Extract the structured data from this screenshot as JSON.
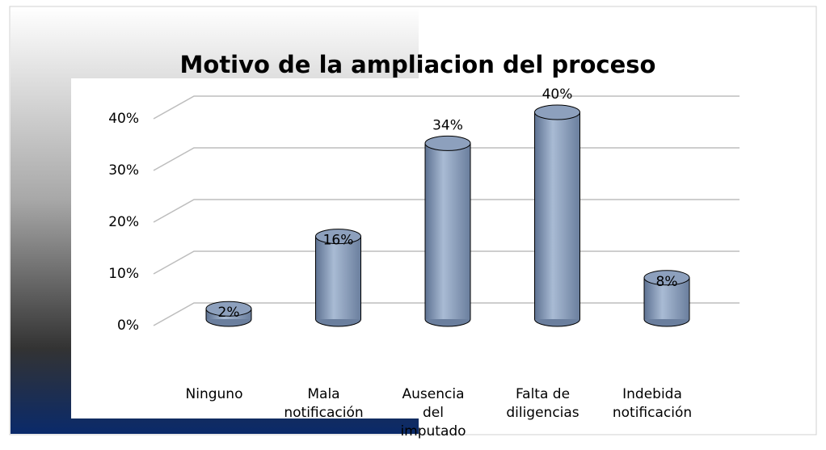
{
  "chart_data": {
    "type": "bar",
    "title": "Motivo de la ampliacion del proceso",
    "categories": [
      "Ninguno",
      "Mala notificación",
      "Ausencia del imputado",
      "Falta de diligencias",
      "Indebida notificación"
    ],
    "values": [
      2,
      16,
      34,
      40,
      8
    ],
    "value_labels": [
      "2%",
      "16%",
      "34%",
      "40%",
      "8%"
    ],
    "color": "#8da0bd",
    "ylim": [
      0,
      40
    ],
    "yticks": [
      {
        "value": 0,
        "label": "0%"
      },
      {
        "value": 10,
        "label": "10%"
      },
      {
        "value": 20,
        "label": "20%"
      },
      {
        "value": 30,
        "label": "30%"
      },
      {
        "value": 40,
        "label": "40%"
      }
    ],
    "grid": true
  }
}
